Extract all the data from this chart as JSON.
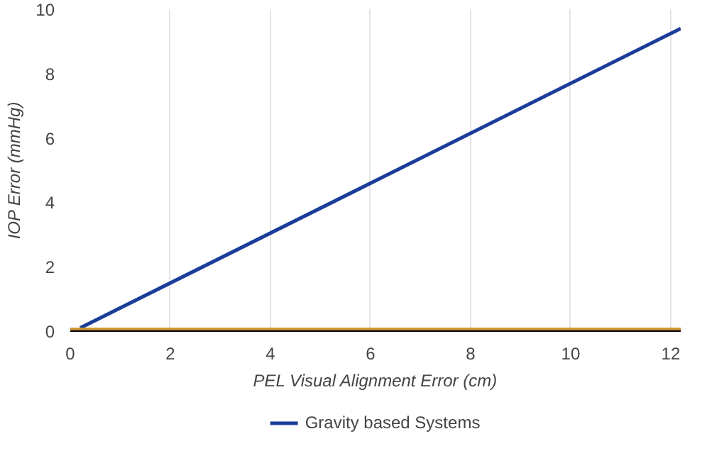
{
  "chart_data": {
    "type": "line",
    "xlabel": "PEL Visual Alignment Error (cm)",
    "ylabel": "IOP Error (mmHg)",
    "xlim": [
      0,
      12.2
    ],
    "ylim": [
      0,
      10
    ],
    "xticks": [
      0,
      2,
      4,
      6,
      8,
      10,
      12
    ],
    "yticks": [
      0,
      2,
      4,
      6,
      8,
      10
    ],
    "grid": "x",
    "legend": "bottom",
    "series": [
      {
        "name": "Gravity based Systems",
        "color": "#1a3d99",
        "x": [
          0.2,
          12.2
        ],
        "values": [
          0.1,
          9.4
        ]
      },
      {
        "color": "#c8912c",
        "x": [
          0,
          12.2
        ],
        "values": [
          0.05,
          0.05
        ]
      }
    ]
  }
}
